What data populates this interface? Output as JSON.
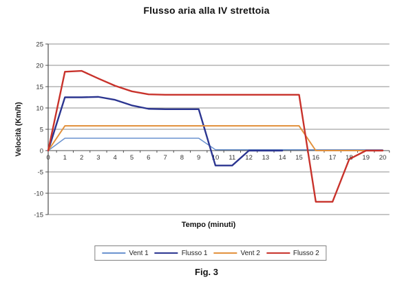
{
  "figure_caption": "Fig. 3",
  "chart_data": {
    "type": "line",
    "title": "Flusso aria alla IV strettoia",
    "xlabel": "Tempo (minuti)",
    "ylabel": "Velocità (Km/h)",
    "x_ticks": [
      0,
      1,
      2,
      3,
      4,
      5,
      6,
      7,
      8,
      9,
      10,
      11,
      12,
      13,
      14,
      15,
      16,
      17,
      18,
      19,
      20
    ],
    "y_ticks": [
      25,
      20,
      15,
      10,
      5,
      0,
      -5,
      -10,
      -15
    ],
    "xlim": [
      0,
      20.4
    ],
    "ylim": [
      -15,
      25
    ],
    "grid": true,
    "legend_position": "bottom",
    "grid_color": "#8c8c8c",
    "axis_color": "#4d4d4d",
    "tick_label_color": "#333333",
    "series": [
      {
        "name": "Vent 1",
        "color": "#6a92cf",
        "width": 1.5,
        "x": [
          0,
          1,
          2,
          3,
          4,
          5,
          6,
          7,
          8,
          9,
          10,
          11,
          12,
          13,
          14,
          15,
          16,
          17,
          18,
          19,
          20
        ],
        "values": [
          0,
          2.9,
          2.9,
          2.9,
          2.9,
          2.9,
          2.9,
          2.9,
          2.9,
          2.9,
          0.2,
          0.2,
          0.2,
          0.2,
          0.2,
          0.2,
          0.2,
          0.2,
          0.2,
          0.2,
          0.2
        ]
      },
      {
        "name": "Flusso 1",
        "color": "#2b3590",
        "width": 2.4,
        "x": [
          0,
          1,
          2,
          3,
          4,
          5,
          6,
          7,
          8,
          9,
          10,
          11,
          12,
          13,
          14
        ],
        "values": [
          0,
          12.5,
          12.5,
          12.6,
          11.9,
          10.6,
          9.8,
          9.7,
          9.7,
          9.7,
          -3.5,
          -3.5,
          0,
          0,
          0
        ]
      },
      {
        "name": "Vent 2",
        "color": "#e2913d",
        "width": 2,
        "x": [
          0,
          1,
          2,
          3,
          4,
          5,
          6,
          7,
          8,
          9,
          10,
          11,
          12,
          13,
          14,
          15,
          16,
          17,
          18,
          19,
          20
        ],
        "values": [
          0,
          5.8,
          5.8,
          5.8,
          5.8,
          5.8,
          5.8,
          5.8,
          5.8,
          5.8,
          5.8,
          5.8,
          5.8,
          5.8,
          5.8,
          5.8,
          0,
          0,
          0,
          0,
          0
        ]
      },
      {
        "name": "Flusso 2",
        "color": "#c8322b",
        "width": 2.4,
        "x": [
          0,
          1,
          2,
          3,
          4,
          5,
          6,
          7,
          8,
          9,
          10,
          11,
          12,
          13,
          14,
          15,
          16,
          17,
          18,
          19,
          20
        ],
        "values": [
          0,
          18.5,
          18.7,
          16.9,
          15.2,
          13.9,
          13.2,
          13.1,
          13.1,
          13.1,
          13.1,
          13.1,
          13.1,
          13.1,
          13.1,
          13.1,
          -12,
          -12,
          -2,
          0,
          0
        ]
      }
    ]
  }
}
